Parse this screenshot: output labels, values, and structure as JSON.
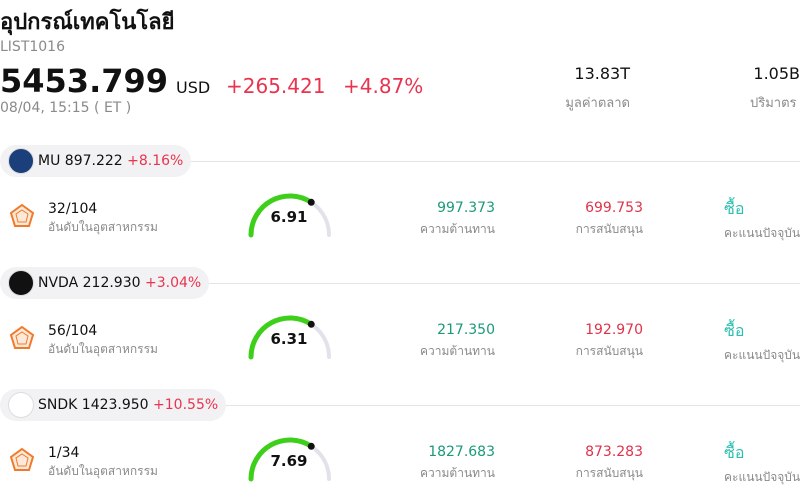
{
  "header": {
    "title": "อุปกรณ์เทคโนโลยี",
    "code": "LIST1016",
    "price": "5453.799",
    "currency": "USD",
    "change": "+265.421",
    "change_pct": "+4.87%",
    "time": "08/04, 15:15  ( ET )",
    "stats": [
      {
        "value": "13.83T",
        "label": "มูลค่าตลาด"
      },
      {
        "value": "1.05B",
        "label": "ปริมาตร"
      }
    ]
  },
  "stocks": [
    {
      "ticker": "MU",
      "price": "897.222",
      "change_pct": "+8.16%",
      "rank": "32/104",
      "rank_label": "อันดับในอุตสาหกรรม",
      "score": "6.91",
      "resistance": "997.373",
      "resistance_label": "ความต้านทาน",
      "support": "699.753",
      "support_label": "การสนับสนุน",
      "signal": "ซื้อ",
      "signal_label": "คะแนนปัจจุบัน"
    },
    {
      "ticker": "NVDA",
      "price": "212.930",
      "change_pct": "+3.04%",
      "rank": "56/104",
      "rank_label": "อันดับในอุตสาหกรรม",
      "score": "6.31",
      "resistance": "217.350",
      "resistance_label": "ความต้านทาน",
      "support": "192.970",
      "support_label": "การสนับสนุน",
      "signal": "ซื้อ",
      "signal_label": "คะแนนปัจจุบัน"
    },
    {
      "ticker": "SNDK",
      "price": "1423.950",
      "change_pct": "+10.55%",
      "rank": "1/34",
      "rank_label": "อันดับในอุตสาหกรรม",
      "score": "7.69",
      "resistance": "1827.683",
      "resistance_label": "ความต้านทาน",
      "support": "873.283",
      "support_label": "การสนับสนุน",
      "signal": "ซื้อ",
      "signal_label": "คะแนนปัจจุบัน"
    }
  ]
}
